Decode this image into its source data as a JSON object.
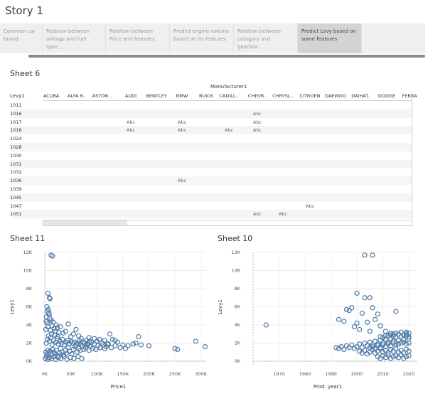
{
  "story": {
    "title": "Story 1"
  },
  "nav": {
    "items": [
      {
        "label": "Comman car brand"
      },
      {
        "label": "Relation between airbags and fuel type,..."
      },
      {
        "label": "Relation between Price and features"
      },
      {
        "label": "Predict engine volume based on its features"
      },
      {
        "label": "Relation between catagory and gearbox..."
      },
      {
        "label": "Predict Levy based on some features"
      }
    ],
    "active_index": 5
  },
  "sheet6": {
    "title": "Sheet 6",
    "manufacturer_header": "Manufacturer1",
    "row_header": "Levy1",
    "columns": [
      "ACURA",
      "ALFA R..",
      "ASTON ..",
      "AUDI",
      "BENTLEY",
      "BMW",
      "BUICK",
      "CADILL..",
      "CHEVR..",
      "CHRYSL..",
      "CITROEN",
      "DAEWOO",
      "DAIHAT..",
      "DODGE",
      "FERRA"
    ],
    "cell_text": "Abc",
    "rows": [
      {
        "levy": "1011",
        "cells": []
      },
      {
        "levy": "1016",
        "cells": [
          "CHEVR.."
        ]
      },
      {
        "levy": "1017",
        "cells": [
          "AUDI",
          "BMW",
          "CHEVR.."
        ]
      },
      {
        "levy": "1018",
        "cells": [
          "AUDI",
          "BMW",
          "CADILL..",
          "CHEVR.."
        ]
      },
      {
        "levy": "1024",
        "cells": []
      },
      {
        "levy": "1028",
        "cells": []
      },
      {
        "levy": "1030",
        "cells": []
      },
      {
        "levy": "1031",
        "cells": []
      },
      {
        "levy": "1032",
        "cells": []
      },
      {
        "levy": "1036",
        "cells": [
          "BMW"
        ]
      },
      {
        "levy": "1039",
        "cells": []
      },
      {
        "levy": "1045",
        "cells": []
      },
      {
        "levy": "1047",
        "cells": [
          "CITROEN"
        ]
      },
      {
        "levy": "1051",
        "cells": [
          "CHEVR..",
          "CHRYSL.."
        ]
      }
    ]
  },
  "sheet11": {
    "title": "Sheet 11"
  },
  "sheet10": {
    "title": "Sheet 10"
  },
  "chart_data": [
    {
      "type": "scatter",
      "title": "Sheet 11",
      "xlabel": "Price1",
      "ylabel": "Levy1",
      "xlim": [
        0,
        310000
      ],
      "ylim": [
        0,
        12000
      ],
      "xticks": [
        0,
        50000,
        100000,
        150000,
        200000,
        250000,
        300000
      ],
      "xtick_labels": [
        "0K",
        "50K",
        "100K",
        "150K",
        "200K",
        "250K",
        "300K"
      ],
      "yticks": [
        0,
        2000,
        4000,
        6000,
        8000,
        10000,
        12000
      ],
      "ytick_labels": [
        "0K",
        "2K",
        "4K",
        "6K",
        "8K",
        "10K",
        "12K"
      ],
      "grid": true,
      "marker_color": "#4e79a7",
      "points": [
        [
          12000,
          11700
        ],
        [
          15000,
          11600
        ],
        [
          6000,
          7500
        ],
        [
          9000,
          7000
        ],
        [
          10000,
          6900
        ],
        [
          4000,
          6000
        ],
        [
          7000,
          5700
        ],
        [
          5000,
          5500
        ],
        [
          8000,
          5300
        ],
        [
          3000,
          4900
        ],
        [
          10000,
          4700
        ],
        [
          16000,
          4300
        ],
        [
          22000,
          4000
        ],
        [
          30000,
          3800
        ],
        [
          45000,
          4100
        ],
        [
          60000,
          3500
        ],
        [
          55000,
          3000
        ],
        [
          35000,
          3100
        ],
        [
          20000,
          3300
        ],
        [
          25000,
          2700
        ],
        [
          70000,
          2500
        ],
        [
          80000,
          2300
        ],
        [
          90000,
          2100
        ],
        [
          100000,
          2200
        ],
        [
          110000,
          2000
        ],
        [
          120000,
          1900
        ],
        [
          130000,
          2400
        ],
        [
          140000,
          2100
        ],
        [
          150000,
          1800
        ],
        [
          160000,
          1700
        ],
        [
          175000,
          2000
        ],
        [
          180000,
          2700
        ],
        [
          125000,
          3000
        ],
        [
          250000,
          1400
        ],
        [
          255000,
          1300
        ],
        [
          290000,
          2200
        ],
        [
          308000,
          1600
        ],
        [
          2000,
          1000
        ],
        [
          4000,
          800
        ],
        [
          6000,
          1200
        ],
        [
          8000,
          900
        ],
        [
          10000,
          1100
        ],
        [
          12000,
          700
        ],
        [
          15000,
          1300
        ],
        [
          18000,
          1000
        ],
        [
          20000,
          800
        ],
        [
          22000,
          1200
        ],
        [
          25000,
          600
        ],
        [
          28000,
          900
        ],
        [
          30000,
          1400
        ],
        [
          33000,
          1000
        ],
        [
          36000,
          700
        ],
        [
          40000,
          1200
        ],
        [
          42000,
          900
        ],
        [
          45000,
          1500
        ],
        [
          48000,
          1100
        ],
        [
          52000,
          800
        ],
        [
          55000,
          1300
        ],
        [
          58000,
          1600
        ],
        [
          62000,
          1000
        ],
        [
          65000,
          1400
        ],
        [
          68000,
          1200
        ],
        [
          72000,
          1700
        ],
        [
          75000,
          1300
        ],
        [
          78000,
          1500
        ],
        [
          82000,
          1800
        ],
        [
          85000,
          1200
        ],
        [
          88000,
          1600
        ],
        [
          92000,
          1400
        ],
        [
          95000,
          1900
        ],
        [
          98000,
          1300
        ],
        [
          102000,
          1700
        ],
        [
          106000,
          1500
        ],
        [
          112000,
          1800
        ],
        [
          115000,
          1400
        ],
        [
          118000,
          1600
        ],
        [
          122000,
          1900
        ],
        [
          128000,
          1500
        ],
        [
          135000,
          1700
        ],
        [
          145000,
          1500
        ],
        [
          155000,
          1400
        ],
        [
          3000,
          2000
        ],
        [
          5000,
          2400
        ],
        [
          7000,
          2800
        ],
        [
          9000,
          2200
        ],
        [
          11000,
          2600
        ],
        [
          13000,
          3000
        ],
        [
          14000,
          1800
        ],
        [
          17000,
          2300
        ],
        [
          19000,
          2900
        ],
        [
          21000,
          2100
        ],
        [
          24000,
          2500
        ],
        [
          26000,
          1900
        ],
        [
          29000,
          2200
        ],
        [
          32000,
          2000
        ],
        [
          34000,
          2400
        ],
        [
          38000,
          1800
        ],
        [
          41000,
          2100
        ],
        [
          44000,
          2300
        ],
        [
          47000,
          1900
        ],
        [
          50000,
          2200
        ],
        [
          53000,
          2000
        ],
        [
          57000,
          2100
        ],
        [
          60000,
          1800
        ],
        [
          63000,
          2000
        ],
        [
          66000,
          2300
        ],
        [
          69000,
          1900
        ],
        [
          73000,
          2100
        ],
        [
          76000,
          2000
        ],
        [
          79000,
          1800
        ],
        [
          83000,
          2000
        ],
        [
          86000,
          2200
        ],
        [
          1000,
          300
        ],
        [
          3000,
          500
        ],
        [
          6000,
          200
        ],
        [
          9000,
          400
        ],
        [
          13000,
          300
        ],
        [
          17000,
          500
        ],
        [
          21000,
          200
        ],
        [
          26000,
          400
        ],
        [
          31000,
          300
        ],
        [
          37000,
          500
        ],
        [
          43000,
          200
        ],
        [
          49000,
          400
        ],
        [
          56000,
          300
        ],
        [
          64000,
          500
        ],
        [
          71000,
          300
        ],
        [
          2000,
          3500
        ],
        [
          6000,
          3800
        ],
        [
          11000,
          3400
        ],
        [
          14000,
          3900
        ],
        [
          18000,
          3600
        ],
        [
          24000,
          3700
        ],
        [
          27000,
          3200
        ],
        [
          2500,
          4400
        ],
        [
          4500,
          4200
        ],
        [
          8500,
          5100
        ],
        [
          12500,
          4500
        ],
        [
          40000,
          3300
        ],
        [
          50000,
          2700
        ],
        [
          65000,
          2800
        ],
        [
          85000,
          2600
        ],
        [
          95000,
          2500
        ],
        [
          105000,
          2400
        ],
        [
          115000,
          2300
        ],
        [
          135000,
          2300
        ],
        [
          170000,
          1900
        ],
        [
          185000,
          1800
        ],
        [
          200000,
          1700
        ]
      ]
    },
    {
      "type": "scatter",
      "title": "Sheet 10",
      "xlabel": "Prod. year1",
      "ylabel": "Levy1",
      "xlim": [
        1960,
        2023
      ],
      "ylim": [
        0,
        12000
      ],
      "xticks": [
        1970,
        1980,
        1990,
        2000,
        2010,
        2020
      ],
      "xtick_labels": [
        "1970",
        "1980",
        "1990",
        "2000",
        "2010",
        "2020"
      ],
      "yticks": [
        0,
        2000,
        4000,
        6000,
        8000,
        10000,
        12000
      ],
      "ytick_labels": [
        "0K",
        "2K",
        "4K",
        "6K",
        "8K",
        "10K",
        "12K"
      ],
      "grid": true,
      "marker_color": "#4e79a7",
      "points": [
        [
          1965,
          4000
        ],
        [
          2003,
          11700
        ],
        [
          2006,
          11700
        ],
        [
          2000,
          7500
        ],
        [
          2003,
          7000
        ],
        [
          2005,
          7000
        ],
        [
          1998,
          5900
        ],
        [
          2006,
          5900
        ],
        [
          2015,
          5500
        ],
        [
          1996,
          5700
        ],
        [
          2002,
          5300
        ],
        [
          2008,
          5200
        ],
        [
          1997,
          5600
        ],
        [
          1993,
          4600
        ],
        [
          1995,
          4400
        ],
        [
          2000,
          4200
        ],
        [
          2004,
          4300
        ],
        [
          2007,
          4600
        ],
        [
          1999,
          3800
        ],
        [
          2009,
          3900
        ],
        [
          2001,
          3500
        ],
        [
          2011,
          3300
        ],
        [
          2013,
          3100
        ],
        [
          2017,
          3200
        ],
        [
          2019,
          3000
        ],
        [
          2005,
          3300
        ],
        [
          1992,
          1500
        ],
        [
          1993,
          1400
        ],
        [
          1994,
          1600
        ],
        [
          1995,
          1300
        ],
        [
          1996,
          1700
        ],
        [
          1997,
          1500
        ],
        [
          1998,
          1800
        ],
        [
          1999,
          1400
        ],
        [
          2000,
          1600
        ],
        [
          2001,
          1900
        ],
        [
          2002,
          1500
        ],
        [
          2003,
          2000
        ],
        [
          2004,
          1700
        ],
        [
          2005,
          2100
        ],
        [
          2006,
          1800
        ],
        [
          2007,
          2200
        ],
        [
          2008,
          1900
        ],
        [
          2009,
          2300
        ],
        [
          2010,
          2000
        ],
        [
          2011,
          2400
        ],
        [
          2012,
          2100
        ],
        [
          2013,
          2500
        ],
        [
          2014,
          2200
        ],
        [
          2015,
          2600
        ],
        [
          2016,
          2300
        ],
        [
          2017,
          2700
        ],
        [
          2018,
          2400
        ],
        [
          2019,
          2800
        ],
        [
          2020,
          2500
        ],
        [
          2001,
          1100
        ],
        [
          2002,
          900
        ],
        [
          2003,
          1200
        ],
        [
          2004,
          800
        ],
        [
          2005,
          1000
        ],
        [
          2006,
          1300
        ],
        [
          2007,
          900
        ],
        [
          2008,
          1100
        ],
        [
          2009,
          1400
        ],
        [
          2010,
          1000
        ],
        [
          2011,
          1200
        ],
        [
          2012,
          900
        ],
        [
          2013,
          1300
        ],
        [
          2014,
          1100
        ],
        [
          2015,
          1400
        ],
        [
          2016,
          1000
        ],
        [
          2017,
          1200
        ],
        [
          2018,
          900
        ],
        [
          2019,
          1300
        ],
        [
          2020,
          1100
        ],
        [
          2008,
          500
        ],
        [
          2009,
          300
        ],
        [
          2010,
          600
        ],
        [
          2011,
          400
        ],
        [
          2012,
          700
        ],
        [
          2013,
          300
        ],
        [
          2014,
          500
        ],
        [
          2015,
          600
        ],
        [
          2016,
          400
        ],
        [
          2017,
          700
        ],
        [
          2018,
          300
        ],
        [
          2019,
          500
        ],
        [
          2020,
          600
        ],
        [
          2005,
          1500
        ],
        [
          2006,
          1600
        ],
        [
          2007,
          1400
        ],
        [
          2008,
          1700
        ],
        [
          2009,
          1500
        ],
        [
          2010,
          1800
        ],
        [
          2011,
          1600
        ],
        [
          2012,
          1900
        ],
        [
          2013,
          1700
        ],
        [
          2014,
          2000
        ],
        [
          2015,
          1800
        ],
        [
          2016,
          1900
        ],
        [
          2017,
          2000
        ],
        [
          2018,
          2100
        ],
        [
          2019,
          1900
        ],
        [
          2020,
          2000
        ],
        [
          2012,
          2800
        ],
        [
          2013,
          2900
        ],
        [
          2014,
          2700
        ],
        [
          2016,
          3000
        ],
        [
          2018,
          2900
        ],
        [
          2020,
          2700
        ],
        [
          2010,
          2600
        ],
        [
          2009,
          2700
        ],
        [
          2011,
          2800
        ],
        [
          2014,
          3000
        ],
        [
          2015,
          3100
        ],
        [
          2019,
          3200
        ],
        [
          2020,
          3100
        ]
      ]
    }
  ]
}
